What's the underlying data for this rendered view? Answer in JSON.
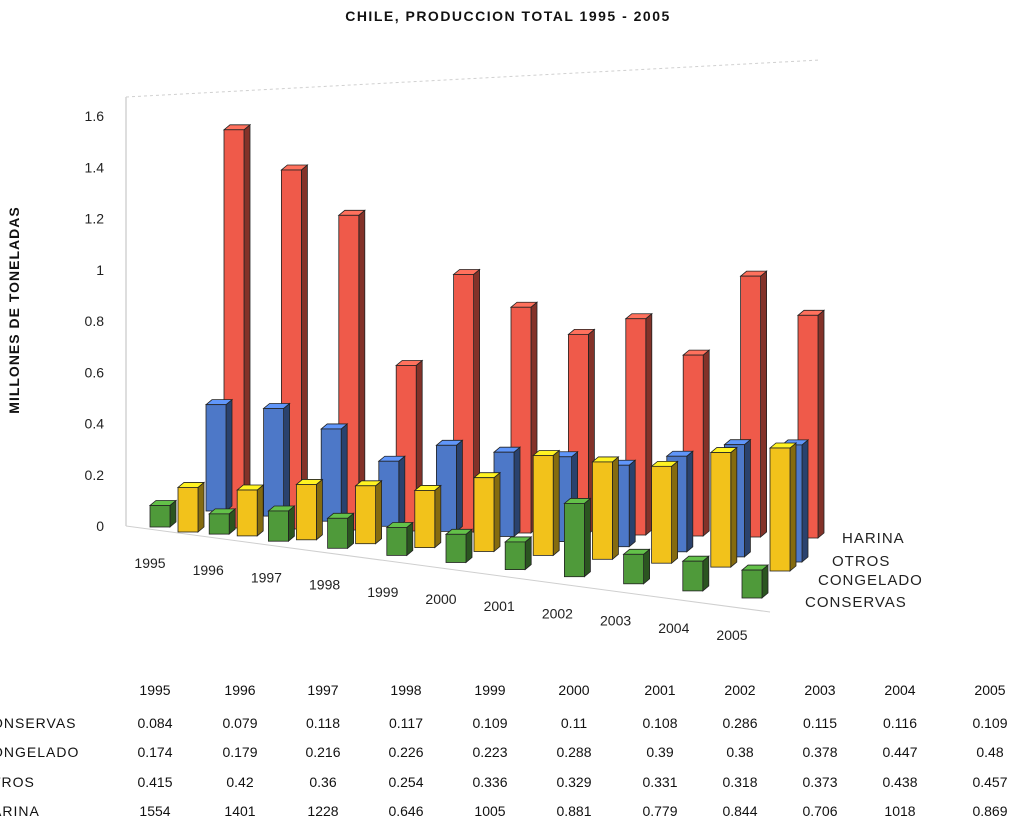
{
  "chart_data": {
    "type": "bar",
    "title": "CHILE, PRODUCCION TOTAL 1995 - 2005",
    "ylabel": "MILLONES DE TONELADAS",
    "xlabel": "",
    "ylim": [
      0,
      1.6
    ],
    "yticks": [
      "1.6",
      "1.4",
      "1.2",
      "1",
      "0.8",
      "0.6",
      "0.4",
      "0.2",
      "0"
    ],
    "y_tick_values": [
      1.6,
      1.4,
      1.2,
      1.0,
      0.8,
      0.6,
      0.4,
      0.2,
      0
    ],
    "categories": [
      "1995",
      "1996",
      "1997",
      "1998",
      "1999",
      "2000",
      "2001",
      "2002",
      "2003",
      "2004",
      "2005"
    ],
    "series": [
      {
        "name": "CONSERVAS",
        "label": "ONSERVAS",
        "color": "#4f9a3a",
        "values": [
          0.084,
          0.079,
          0.118,
          0.117,
          0.109,
          0.11,
          0.108,
          0.286,
          0.115,
          0.116,
          0.109
        ],
        "display": [
          "0.084",
          "0.079",
          "0.118",
          "0.117",
          "0.109",
          "0.11",
          "0.108",
          "0.286",
          "0.115",
          "0.116",
          "0.109"
        ]
      },
      {
        "name": "CONGELADO",
        "label": "ONGELADO",
        "color": "#f2c21b",
        "values": [
          0.174,
          0.179,
          0.216,
          0.226,
          0.223,
          0.288,
          0.39,
          0.38,
          0.378,
          0.447,
          0.48
        ],
        "display": [
          "0.174",
          "0.179",
          "0.216",
          "0.226",
          "0.223",
          "0.288",
          "0.39",
          "0.38",
          "0.378",
          "0.447",
          "0.48"
        ]
      },
      {
        "name": "OTROS",
        "label": "TROS",
        "color": "#4d78c8",
        "values": [
          0.415,
          0.42,
          0.36,
          0.254,
          0.336,
          0.329,
          0.331,
          0.318,
          0.373,
          0.438,
          0.457
        ],
        "display": [
          "0.415",
          "0.42",
          "0.36",
          "0.254",
          "0.336",
          "0.329",
          "0.331",
          "0.318",
          "0.373",
          "0.438",
          "0.457"
        ]
      },
      {
        "name": "HARINA",
        "label": "ARINA",
        "color": "#ef5a4a",
        "values": [
          1.554,
          1.401,
          1.228,
          0.646,
          1.005,
          0.881,
          0.779,
          0.844,
          0.706,
          1.018,
          0.869
        ],
        "display": [
          "1554",
          "1401",
          "1228",
          "0.646",
          "1005",
          "0.881",
          "0.779",
          "0.844",
          "0.706",
          "1018",
          "0.869"
        ]
      }
    ],
    "depth_labels": [
      "HARINA",
      "OTROS",
      "CONGELADO",
      "CONSERVAS"
    ],
    "legend": "right",
    "grid": false
  }
}
